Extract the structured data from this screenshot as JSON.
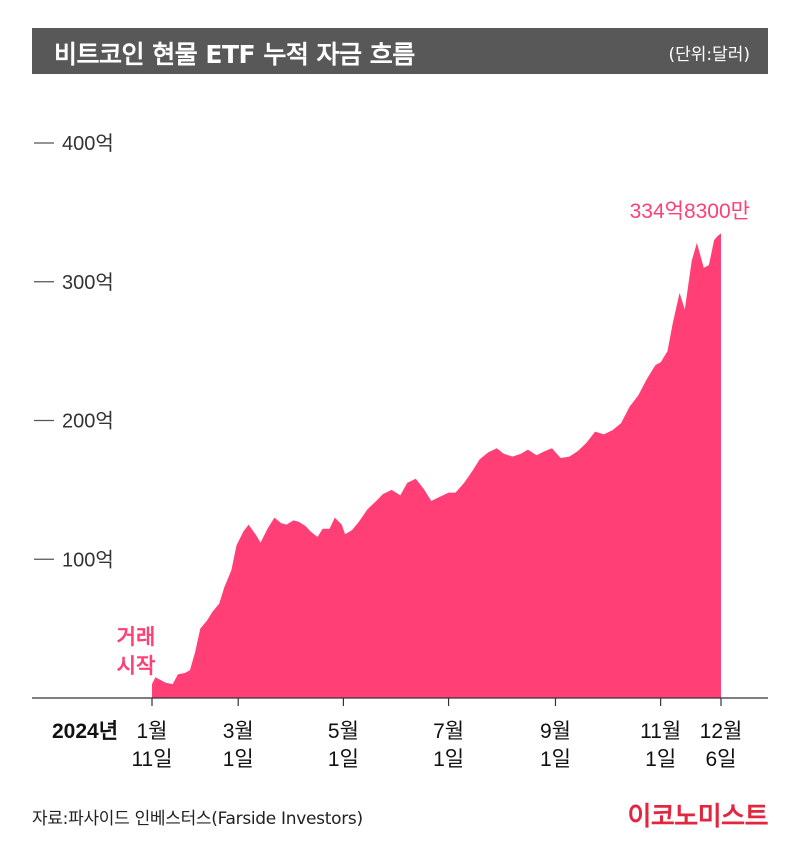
{
  "header": {
    "title": "비트코인 현물 ETF 누적 자금 흐름",
    "unit": "(단위:달러)"
  },
  "footer": {
    "source": "자료:파사이드 인베스터스(Farside Investors)",
    "brand": "이코노미스트"
  },
  "colors": {
    "area": "#ff3f75",
    "header_bg": "#585858",
    "brand": "#e2263f"
  },
  "chart_data": {
    "type": "area",
    "title": "비트코인 현물 ETF 누적 자금 흐름",
    "unit": "(단위:달러)",
    "y_tick_labels": [
      "100억",
      "200억",
      "300억",
      "400억"
    ],
    "y_ticks": [
      100,
      200,
      300,
      400
    ],
    "ylim": [
      0,
      400
    ],
    "y_units": "억 달러",
    "x_year_label": "2024년",
    "x_ticks": [
      {
        "date": "2024-01-11",
        "month": "1월",
        "day": "11일"
      },
      {
        "date": "2024-03-01",
        "month": "3월",
        "day": "1일"
      },
      {
        "date": "2024-05-01",
        "month": "5월",
        "day": "1일"
      },
      {
        "date": "2024-07-01",
        "month": "7월",
        "day": "1일"
      },
      {
        "date": "2024-09-01",
        "month": "9월",
        "day": "1일"
      },
      {
        "date": "2024-11-01",
        "month": "11월",
        "day": "1일"
      },
      {
        "date": "2024-12-06",
        "month": "12월",
        "day": "6일"
      }
    ],
    "annotations": {
      "start": [
        "거래",
        "시작"
      ],
      "end": "334억8300만"
    },
    "series": [
      {
        "x": [
          "2024-01-11",
          "2024-01-13",
          "2024-01-16",
          "2024-01-19",
          "2024-01-23",
          "2024-01-26",
          "2024-01-30",
          "2024-02-02",
          "2024-02-05",
          "2024-02-08",
          "2024-02-12",
          "2024-02-15",
          "2024-02-19",
          "2024-02-22",
          "2024-02-26",
          "2024-02-29",
          "2024-03-04",
          "2024-03-07",
          "2024-03-11",
          "2024-03-14",
          "2024-03-18",
          "2024-03-22",
          "2024-03-26",
          "2024-03-29",
          "2024-04-02",
          "2024-04-05",
          "2024-04-09",
          "2024-04-12",
          "2024-04-16",
          "2024-04-19",
          "2024-04-23",
          "2024-04-26",
          "2024-04-30",
          "2024-05-02",
          "2024-05-06",
          "2024-05-10",
          "2024-05-15",
          "2024-05-20",
          "2024-05-24",
          "2024-05-29",
          "2024-06-03",
          "2024-06-07",
          "2024-06-12",
          "2024-06-17",
          "2024-06-21",
          "2024-06-26",
          "2024-07-01",
          "2024-07-05",
          "2024-07-10",
          "2024-07-15",
          "2024-07-19",
          "2024-07-24",
          "2024-07-29",
          "2024-08-02",
          "2024-08-07",
          "2024-08-12",
          "2024-08-16",
          "2024-08-21",
          "2024-08-26",
          "2024-08-30",
          "2024-09-04",
          "2024-09-09",
          "2024-09-14",
          "2024-09-19",
          "2024-09-24",
          "2024-09-29",
          "2024-10-04",
          "2024-10-09",
          "2024-10-14",
          "2024-10-19",
          "2024-10-24",
          "2024-10-29",
          "2024-11-01",
          "2024-11-05",
          "2024-11-08",
          "2024-11-12",
          "2024-11-15",
          "2024-11-19",
          "2024-11-22",
          "2024-11-26",
          "2024-11-29",
          "2024-12-02",
          "2024-12-04",
          "2024-12-06"
        ],
        "values": [
          10,
          15,
          13,
          11,
          10,
          17,
          18,
          20,
          33,
          50,
          56,
          62,
          68,
          80,
          92,
          110,
          120,
          125,
          118,
          112,
          122,
          130,
          126,
          125,
          128,
          127,
          124,
          120,
          116,
          122,
          122,
          130,
          125,
          118,
          121,
          127,
          136,
          142,
          147,
          150,
          146,
          155,
          158,
          150,
          142,
          145,
          148,
          148,
          155,
          164,
          172,
          177,
          180,
          176,
          174,
          176,
          179,
          175,
          178,
          180,
          173,
          174,
          178,
          184,
          192,
          190,
          193,
          198,
          210,
          218,
          230,
          240,
          242,
          250,
          270,
          292,
          280,
          315,
          328,
          310,
          312,
          330,
          333,
          334.83
        ]
      }
    ]
  }
}
